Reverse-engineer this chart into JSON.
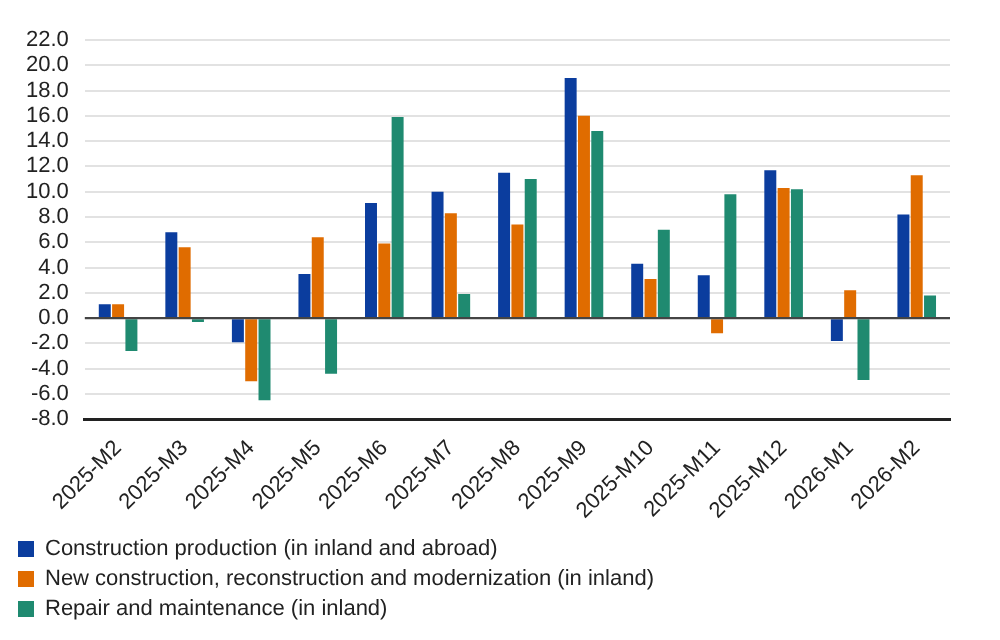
{
  "chart_data": {
    "type": "bar",
    "categories": [
      "2025-M2",
      "2025-M3",
      "2025-M4",
      "2025-M5",
      "2025-M6",
      "2025-M7",
      "2025-M8",
      "2025-M9",
      "2025-M10",
      "2025-M11",
      "2025-M12",
      "2026-M1",
      "2026-M2"
    ],
    "series": [
      {
        "name": "Construction production (in inland and abroad)",
        "color": "#0b3d9e",
        "values": [
          1.1,
          6.8,
          -1.9,
          3.5,
          9.1,
          10.0,
          11.5,
          19.0,
          4.3,
          3.4,
          11.7,
          -1.8,
          8.2
        ]
      },
      {
        "name": "New construction, reconstruction and modernization (in inland)",
        "color": "#e06c00",
        "values": [
          1.1,
          5.6,
          -5.0,
          6.4,
          5.9,
          8.3,
          7.4,
          16.0,
          3.1,
          -1.2,
          10.3,
          2.2,
          11.3
        ]
      },
      {
        "name": "Repair and maintenance (in inland)",
        "color": "#1f8a70",
        "values": [
          -2.6,
          -0.3,
          -6.5,
          -4.4,
          15.9,
          1.9,
          11.0,
          14.8,
          7.0,
          9.8,
          10.2,
          -4.9,
          1.8
        ]
      }
    ],
    "ylim": [
      -8,
      22
    ],
    "yticks": [
      {
        "value": -8,
        "label": "-8.0"
      },
      {
        "value": -6,
        "label": "-6.0"
      },
      {
        "value": -4,
        "label": "-4.0"
      },
      {
        "value": -2,
        "label": "-2.0"
      },
      {
        "value": 0,
        "label": "0.0"
      },
      {
        "value": 2,
        "label": "2.0"
      },
      {
        "value": 4,
        "label": "4.0"
      },
      {
        "value": 6,
        "label": "6.0"
      },
      {
        "value": 8,
        "label": "8.0"
      },
      {
        "value": 10,
        "label": "10.0"
      },
      {
        "value": 12,
        "label": "12.0"
      },
      {
        "value": 14,
        "label": "14.0"
      },
      {
        "value": 16,
        "label": "16.0"
      },
      {
        "value": 18,
        "label": "18.0"
      },
      {
        "value": 20,
        "label": "20.0"
      },
      {
        "value": 22,
        "label": "22.0"
      }
    ],
    "grid": "y",
    "legend": "bottom left"
  }
}
